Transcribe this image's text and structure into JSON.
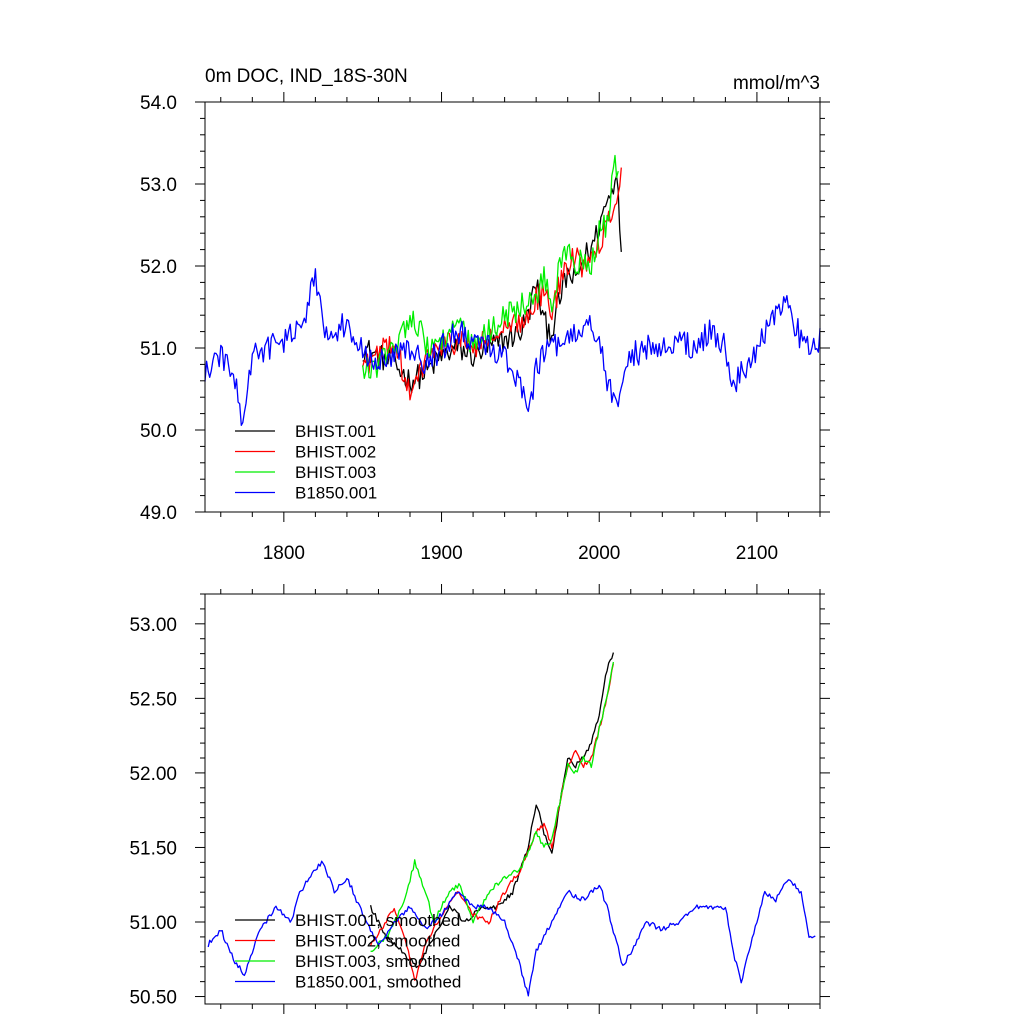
{
  "chart_data": [
    {
      "type": "line",
      "title": "0m DOC, IND_18S-30N",
      "units": "mmol/m^3",
      "xlim": [
        1750,
        2140
      ],
      "ylim": [
        49.0,
        54.0
      ],
      "xticks": [
        1800,
        1900,
        2000,
        2100
      ],
      "xtick_labels": [
        "1800",
        "1900",
        "2000",
        "2100"
      ],
      "yticks": [
        49,
        50,
        51,
        52,
        53,
        54
      ],
      "ytick_labels": [
        "49.0",
        "50.0",
        "51.0",
        "52.0",
        "53.0",
        "54.0"
      ],
      "legend_position": "bottom-left",
      "series": [
        {
          "name": "BHIST.001",
          "color": "#000000",
          "x_start": 1850,
          "x_end": 2014,
          "points": [
            [
              1850,
              51.0
            ],
            [
              1860,
              50.9
            ],
            [
              1870,
              50.8
            ],
            [
              1880,
              50.6
            ],
            [
              1890,
              50.7
            ],
            [
              1900,
              50.9
            ],
            [
              1910,
              51.0
            ],
            [
              1920,
              50.9
            ],
            [
              1930,
              51.0
            ],
            [
              1940,
              51.1
            ],
            [
              1950,
              51.2
            ],
            [
              1955,
              51.4
            ],
            [
              1960,
              51.8
            ],
            [
              1965,
              51.3
            ],
            [
              1970,
              51.2
            ],
            [
              1975,
              51.6
            ],
            [
              1980,
              51.9
            ],
            [
              1985,
              51.8
            ],
            [
              1990,
              52.1
            ],
            [
              1995,
              52.2
            ],
            [
              2000,
              52.5
            ],
            [
              2005,
              52.8
            ],
            [
              2008,
              52.9
            ],
            [
              2011,
              53.2
            ],
            [
              2014,
              52.3
            ]
          ]
        },
        {
          "name": "BHIST.002",
          "color": "#ff0000",
          "x_start": 1850,
          "x_end": 2014,
          "points": [
            [
              1850,
              50.8
            ],
            [
              1860,
              50.9
            ],
            [
              1870,
              51.1
            ],
            [
              1880,
              50.4
            ],
            [
              1885,
              50.6
            ],
            [
              1890,
              50.9
            ],
            [
              1900,
              51.0
            ],
            [
              1910,
              51.1
            ],
            [
              1920,
              51.0
            ],
            [
              1930,
              51.1
            ],
            [
              1940,
              51.2
            ],
            [
              1950,
              51.3
            ],
            [
              1960,
              51.6
            ],
            [
              1965,
              51.7
            ],
            [
              1970,
              51.4
            ],
            [
              1975,
              51.8
            ],
            [
              1980,
              52.0
            ],
            [
              1985,
              52.1
            ],
            [
              1990,
              52.0
            ],
            [
              1995,
              52.2
            ],
            [
              2000,
              52.3
            ],
            [
              2005,
              52.5
            ],
            [
              2010,
              52.8
            ],
            [
              2014,
              53.1
            ]
          ]
        },
        {
          "name": "BHIST.003",
          "color": "#00ee00",
          "x_start": 1850,
          "x_end": 2012,
          "points": [
            [
              1850,
              50.7
            ],
            [
              1860,
              50.8
            ],
            [
              1870,
              51.0
            ],
            [
              1880,
              51.4
            ],
            [
              1885,
              51.3
            ],
            [
              1890,
              51.0
            ],
            [
              1900,
              51.1
            ],
            [
              1910,
              51.3
            ],
            [
              1920,
              51.0
            ],
            [
              1930,
              51.2
            ],
            [
              1940,
              51.4
            ],
            [
              1950,
              51.5
            ],
            [
              1960,
              51.6
            ],
            [
              1965,
              51.9
            ],
            [
              1970,
              51.5
            ],
            [
              1975,
              52.0
            ],
            [
              1980,
              52.2
            ],
            [
              1985,
              52.0
            ],
            [
              1990,
              52.1
            ],
            [
              1995,
              52.0
            ],
            [
              2000,
              52.4
            ],
            [
              2005,
              52.5
            ],
            [
              2010,
              53.4
            ],
            [
              2012,
              53.0
            ]
          ]
        },
        {
          "name": "B1850.001",
          "color": "#0000ff",
          "x_start": 1750,
          "x_end": 2140,
          "points": [
            [
              1750,
              50.7
            ],
            [
              1760,
              50.9
            ],
            [
              1770,
              50.6
            ],
            [
              1773,
              50.0
            ],
            [
              1780,
              50.9
            ],
            [
              1790,
              51.0
            ],
            [
              1800,
              51.1
            ],
            [
              1810,
              51.2
            ],
            [
              1815,
              51.5
            ],
            [
              1820,
              51.9
            ],
            [
              1825,
              51.3
            ],
            [
              1830,
              51.2
            ],
            [
              1840,
              51.3
            ],
            [
              1850,
              51.0
            ],
            [
              1860,
              50.8
            ],
            [
              1870,
              50.9
            ],
            [
              1880,
              51.0
            ],
            [
              1890,
              50.8
            ],
            [
              1900,
              51.0
            ],
            [
              1910,
              51.2
            ],
            [
              1920,
              51.1
            ],
            [
              1930,
              51.0
            ],
            [
              1940,
              50.9
            ],
            [
              1950,
              50.6
            ],
            [
              1955,
              50.1
            ],
            [
              1960,
              50.8
            ],
            [
              1970,
              51.0
            ],
            [
              1980,
              51.1
            ],
            [
              1990,
              51.2
            ],
            [
              1995,
              51.3
            ],
            [
              2000,
              51.1
            ],
            [
              2005,
              50.6
            ],
            [
              2010,
              50.3
            ],
            [
              2020,
              50.9
            ],
            [
              2030,
              51.0
            ],
            [
              2040,
              51.0
            ],
            [
              2050,
              51.1
            ],
            [
              2060,
              51.0
            ],
            [
              2070,
              51.2
            ],
            [
              2080,
              51.0
            ],
            [
              2085,
              50.5
            ],
            [
              2090,
              50.7
            ],
            [
              2100,
              51.0
            ],
            [
              2110,
              51.4
            ],
            [
              2120,
              51.5
            ],
            [
              2130,
              51.0
            ],
            [
              2140,
              51.1
            ]
          ]
        }
      ]
    },
    {
      "type": "line",
      "xlim": [
        1750,
        2140
      ],
      "ylim": [
        50.45,
        53.2
      ],
      "xticks": [
        1800,
        1900,
        2000,
        2100
      ],
      "yticks": [
        50.5,
        51.0,
        51.5,
        52.0,
        52.5,
        53.0
      ],
      "ytick_labels": [
        "50.50",
        "51.00",
        "51.50",
        "52.00",
        "52.50",
        "53.00"
      ],
      "legend_position": "bottom-left",
      "series": [
        {
          "name": "BHIST.001, smoothed",
          "color": "#000000",
          "x_start": 1855,
          "x_end": 2009,
          "points": [
            [
              1855,
              51.1
            ],
            [
              1865,
              50.9
            ],
            [
              1875,
              50.8
            ],
            [
              1885,
              50.7
            ],
            [
              1895,
              50.9
            ],
            [
              1905,
              51.1
            ],
            [
              1915,
              51.0
            ],
            [
              1925,
              51.1
            ],
            [
              1935,
              51.1
            ],
            [
              1945,
              51.2
            ],
            [
              1955,
              51.5
            ],
            [
              1960,
              51.8
            ],
            [
              1965,
              51.6
            ],
            [
              1970,
              51.45
            ],
            [
              1975,
              51.8
            ],
            [
              1980,
              52.1
            ],
            [
              1985,
              52.05
            ],
            [
              1990,
              52.1
            ],
            [
              1995,
              52.2
            ],
            [
              2000,
              52.4
            ],
            [
              2005,
              52.7
            ],
            [
              2009,
              52.8
            ]
          ]
        },
        {
          "name": "BHIST.002, smoothed",
          "color": "#ff0000",
          "x_start": 1855,
          "x_end": 2009,
          "points": [
            [
              1855,
              50.85
            ],
            [
              1865,
              51.0
            ],
            [
              1870,
              51.1
            ],
            [
              1878,
              50.85
            ],
            [
              1883,
              50.6
            ],
            [
              1890,
              50.85
            ],
            [
              1900,
              51.05
            ],
            [
              1910,
              51.2
            ],
            [
              1920,
              51.05
            ],
            [
              1930,
              51.0
            ],
            [
              1940,
              51.2
            ],
            [
              1950,
              51.35
            ],
            [
              1960,
              51.6
            ],
            [
              1965,
              51.65
            ],
            [
              1970,
              51.5
            ],
            [
              1975,
              51.8
            ],
            [
              1980,
              52.05
            ],
            [
              1985,
              52.15
            ],
            [
              1990,
              52.05
            ],
            [
              1995,
              52.1
            ],
            [
              2000,
              52.3
            ],
            [
              2005,
              52.5
            ],
            [
              2009,
              52.75
            ]
          ]
        },
        {
          "name": "BHIST.003, smoothed",
          "color": "#00ee00",
          "x_start": 1855,
          "x_end": 2009,
          "points": [
            [
              1855,
              50.8
            ],
            [
              1865,
              50.9
            ],
            [
              1875,
              51.1
            ],
            [
              1883,
              51.4
            ],
            [
              1890,
              51.2
            ],
            [
              1895,
              51.0
            ],
            [
              1905,
              51.2
            ],
            [
              1912,
              51.25
            ],
            [
              1920,
              51.0
            ],
            [
              1930,
              51.2
            ],
            [
              1940,
              51.3
            ],
            [
              1950,
              51.35
            ],
            [
              1960,
              51.6
            ],
            [
              1965,
              51.5
            ],
            [
              1970,
              51.55
            ],
            [
              1975,
              51.8
            ],
            [
              1980,
              52.05
            ],
            [
              1985,
              52.0
            ],
            [
              1990,
              52.1
            ],
            [
              1995,
              52.05
            ],
            [
              2000,
              52.3
            ],
            [
              2005,
              52.5
            ],
            [
              2009,
              52.75
            ]
          ]
        },
        {
          "name": "B1850.001, smoothed",
          "color": "#0000ff",
          "x_start": 1752,
          "x_end": 2137,
          "points": [
            [
              1752,
              50.85
            ],
            [
              1760,
              50.95
            ],
            [
              1768,
              50.75
            ],
            [
              1775,
              50.65
            ],
            [
              1785,
              50.95
            ],
            [
              1795,
              51.1
            ],
            [
              1805,
              51.0
            ],
            [
              1810,
              51.2
            ],
            [
              1820,
              51.35
            ],
            [
              1825,
              51.4
            ],
            [
              1832,
              51.2
            ],
            [
              1840,
              51.3
            ],
            [
              1850,
              51.05
            ],
            [
              1860,
              50.85
            ],
            [
              1870,
              51.0
            ],
            [
              1880,
              51.1
            ],
            [
              1890,
              50.95
            ],
            [
              1900,
              51.05
            ],
            [
              1910,
              51.2
            ],
            [
              1920,
              51.1
            ],
            [
              1930,
              51.1
            ],
            [
              1940,
              51.0
            ],
            [
              1950,
              50.7
            ],
            [
              1955,
              50.5
            ],
            [
              1960,
              50.8
            ],
            [
              1970,
              51.0
            ],
            [
              1980,
              51.2
            ],
            [
              1990,
              51.15
            ],
            [
              2000,
              51.25
            ],
            [
              2005,
              51.1
            ],
            [
              2010,
              50.9
            ],
            [
              2015,
              50.7
            ],
            [
              2020,
              50.8
            ],
            [
              2030,
              51.0
            ],
            [
              2040,
              50.95
            ],
            [
              2050,
              51.0
            ],
            [
              2060,
              51.1
            ],
            [
              2070,
              51.1
            ],
            [
              2080,
              51.1
            ],
            [
              2085,
              50.8
            ],
            [
              2090,
              50.6
            ],
            [
              2100,
              51.0
            ],
            [
              2105,
              51.2
            ],
            [
              2112,
              51.15
            ],
            [
              2120,
              51.3
            ],
            [
              2128,
              51.2
            ],
            [
              2133,
              50.9
            ],
            [
              2137,
              50.9
            ]
          ]
        }
      ]
    }
  ]
}
